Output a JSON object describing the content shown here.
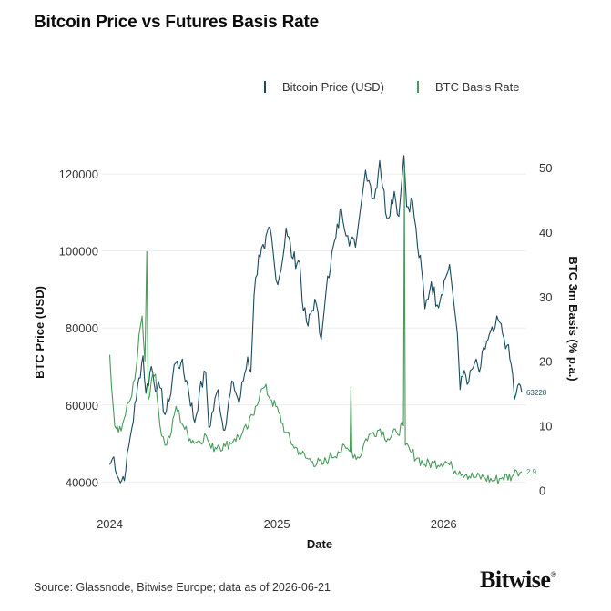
{
  "title": "Bitcoin Price vs Futures Basis Rate",
  "source": "Source: Glassnode, Bitwise Europe; data as of 2026-06-21",
  "brand": {
    "name": "Bitwise",
    "mark": "®"
  },
  "chart_data": {
    "type": "line",
    "xlabel": "Date",
    "ylabel_left": "BTC Price (USD)",
    "ylabel_right": "BTC 3m Basis (% p.a.)",
    "x_ticks": [
      "2024",
      "2025",
      "2026"
    ],
    "y_left_ticks": [
      40000,
      60000,
      80000,
      100000,
      120000
    ],
    "y_right_ticks": [
      0,
      10,
      20,
      30,
      40,
      50
    ],
    "y_left_range": [
      37000,
      125000
    ],
    "y_right_range": [
      -0.5,
      52
    ],
    "x_range": [
      "2023-12-15",
      "2026-07-01"
    ],
    "legend_position": "top-right",
    "grid": "horizontal",
    "series": [
      {
        "name": "Bitcoin Price (USD)",
        "color": "#1a4a5c",
        "axis": "left",
        "end_label": "63228",
        "points": [
          [
            "2024-01-01",
            44500
          ],
          [
            "2024-01-10",
            46500
          ],
          [
            "2024-01-20",
            41000
          ],
          [
            "2024-01-24",
            39800
          ],
          [
            "2024-02-05",
            43000
          ],
          [
            "2024-02-15",
            51800
          ],
          [
            "2024-02-28",
            61500
          ],
          [
            "2024-03-05",
            67000
          ],
          [
            "2024-03-14",
            72800
          ],
          [
            "2024-03-20",
            63000
          ],
          [
            "2024-04-01",
            70000
          ],
          [
            "2024-04-13",
            64000
          ],
          [
            "2024-04-20",
            64500
          ],
          [
            "2024-05-01",
            57500
          ],
          [
            "2024-05-10",
            61000
          ],
          [
            "2024-05-21",
            70500
          ],
          [
            "2024-06-05",
            71000
          ],
          [
            "2024-06-20",
            65000
          ],
          [
            "2024-07-05",
            55500
          ],
          [
            "2024-07-15",
            63000
          ],
          [
            "2024-07-29",
            68500
          ],
          [
            "2024-08-05",
            54000
          ],
          [
            "2024-08-25",
            64000
          ],
          [
            "2024-09-06",
            53500
          ],
          [
            "2024-09-27",
            66000
          ],
          [
            "2024-10-10",
            60500
          ],
          [
            "2024-10-29",
            72500
          ],
          [
            "2024-11-05",
            68500
          ],
          [
            "2024-11-12",
            88500
          ],
          [
            "2024-11-22",
            99000
          ],
          [
            "2024-12-05",
            100500
          ],
          [
            "2024-12-17",
            106000
          ],
          [
            "2024-12-30",
            92500
          ],
          [
            "2025-01-10",
            95000
          ],
          [
            "2025-01-21",
            106000
          ],
          [
            "2025-02-05",
            98000
          ],
          [
            "2025-02-20",
            97000
          ],
          [
            "2025-02-28",
            84500
          ],
          [
            "2025-03-10",
            80500
          ],
          [
            "2025-03-25",
            87500
          ],
          [
            "2025-04-08",
            77000
          ],
          [
            "2025-04-22",
            93500
          ],
          [
            "2025-05-10",
            103500
          ],
          [
            "2025-05-22",
            111000
          ],
          [
            "2025-06-05",
            104000
          ],
          [
            "2025-06-22",
            101000
          ],
          [
            "2025-07-14",
            121000
          ],
          [
            "2025-07-25",
            117000
          ],
          [
            "2025-08-02",
            113500
          ],
          [
            "2025-08-14",
            123500
          ],
          [
            "2025-08-30",
            108500
          ],
          [
            "2025-09-15",
            115500
          ],
          [
            "2025-09-25",
            109000
          ],
          [
            "2025-10-06",
            124800
          ],
          [
            "2025-10-12",
            111500
          ],
          [
            "2025-10-25",
            113000
          ],
          [
            "2025-11-05",
            101000
          ],
          [
            "2025-11-14",
            95000
          ],
          [
            "2025-11-21",
            85000
          ],
          [
            "2025-12-05",
            92000
          ],
          [
            "2025-12-18",
            86000
          ],
          [
            "2026-01-05",
            93000
          ],
          [
            "2026-01-14",
            96500
          ],
          [
            "2026-01-31",
            78500
          ],
          [
            "2026-02-06",
            64000
          ],
          [
            "2026-02-15",
            69000
          ],
          [
            "2026-02-25",
            66000
          ],
          [
            "2026-03-10",
            71000
          ],
          [
            "2026-03-20",
            68500
          ],
          [
            "2026-04-05",
            76500
          ],
          [
            "2026-04-20",
            79000
          ],
          [
            "2026-05-01",
            82000
          ],
          [
            "2026-05-10",
            78500
          ],
          [
            "2026-05-20",
            75500
          ],
          [
            "2026-06-01",
            68000
          ],
          [
            "2026-06-05",
            61500
          ],
          [
            "2026-06-12",
            65000
          ],
          [
            "2026-06-21",
            63228
          ]
        ]
      },
      {
        "name": "BTC Basis Rate",
        "color": "#4a9a5c",
        "axis": "right",
        "end_label": "2.9",
        "points": [
          [
            "2024-01-01",
            21
          ],
          [
            "2024-01-05",
            16
          ],
          [
            "2024-01-12",
            10
          ],
          [
            "2024-01-20",
            9
          ],
          [
            "2024-02-01",
            11
          ],
          [
            "2024-02-15",
            14
          ],
          [
            "2024-02-28",
            19
          ],
          [
            "2024-03-05",
            24
          ],
          [
            "2024-03-12",
            27
          ],
          [
            "2024-03-18",
            20
          ],
          [
            "2024-03-22",
            37
          ],
          [
            "2024-03-25",
            14
          ],
          [
            "2024-04-01",
            17
          ],
          [
            "2024-04-10",
            18
          ],
          [
            "2024-04-20",
            10
          ],
          [
            "2024-05-01",
            7
          ],
          [
            "2024-05-15",
            9
          ],
          [
            "2024-05-25",
            13
          ],
          [
            "2024-06-10",
            10
          ],
          [
            "2024-06-25",
            8
          ],
          [
            "2024-07-10",
            7.5
          ],
          [
            "2024-07-30",
            8.5
          ],
          [
            "2024-08-10",
            6.5
          ],
          [
            "2024-08-25",
            7
          ],
          [
            "2024-09-10",
            6.8
          ],
          [
            "2024-09-30",
            8
          ],
          [
            "2024-10-15",
            8.5
          ],
          [
            "2024-10-31",
            10
          ],
          [
            "2024-11-15",
            13
          ],
          [
            "2024-11-25",
            15
          ],
          [
            "2024-12-05",
            16
          ],
          [
            "2024-12-20",
            14
          ],
          [
            "2025-01-05",
            12
          ],
          [
            "2025-01-20",
            9
          ],
          [
            "2025-02-05",
            7
          ],
          [
            "2025-02-20",
            6
          ],
          [
            "2025-03-05",
            5
          ],
          [
            "2025-03-20",
            4.5
          ],
          [
            "2025-04-10",
            4
          ],
          [
            "2025-04-25",
            5
          ],
          [
            "2025-05-15",
            6
          ],
          [
            "2025-06-01",
            6.5
          ],
          [
            "2025-06-10",
            6
          ],
          [
            "2025-06-12",
            16
          ],
          [
            "2025-06-14",
            6
          ],
          [
            "2025-06-30",
            5
          ],
          [
            "2025-07-15",
            8
          ],
          [
            "2025-07-31",
            9
          ],
          [
            "2025-08-15",
            9.5
          ],
          [
            "2025-09-01",
            8
          ],
          [
            "2025-09-20",
            9
          ],
          [
            "2025-10-05",
            10
          ],
          [
            "2025-10-07",
            50
          ],
          [
            "2025-10-09",
            7
          ],
          [
            "2025-10-20",
            6
          ],
          [
            "2025-11-05",
            5
          ],
          [
            "2025-11-20",
            4
          ],
          [
            "2025-12-10",
            4.2
          ],
          [
            "2026-01-05",
            4.5
          ],
          [
            "2026-01-20",
            3.5
          ],
          [
            "2026-02-05",
            3
          ],
          [
            "2026-02-20",
            2.5
          ],
          [
            "2026-03-10",
            2
          ],
          [
            "2026-03-30",
            2
          ],
          [
            "2026-04-20",
            1.5
          ],
          [
            "2026-05-10",
            2
          ],
          [
            "2026-05-31",
            2.2
          ],
          [
            "2026-06-10",
            3
          ],
          [
            "2026-06-21",
            2.9
          ]
        ]
      }
    ]
  }
}
